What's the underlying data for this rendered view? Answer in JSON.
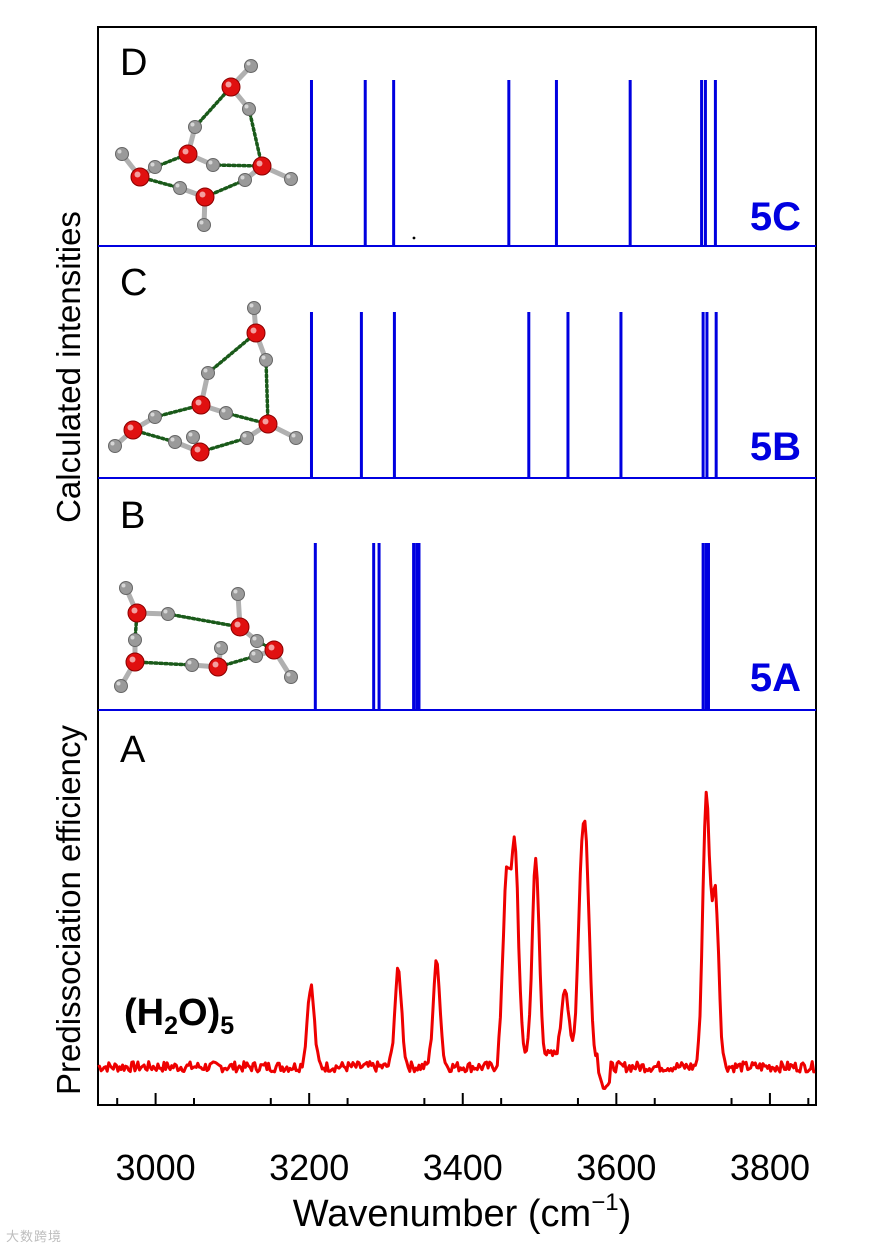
{
  "chart_data": [
    {
      "panel": "D",
      "type": "stick",
      "label": "5C",
      "color": "#0000e0",
      "x": [
        3203,
        3273,
        3310,
        3460,
        3522,
        3618,
        3711,
        3716,
        3729
      ],
      "heights": [
        1,
        1,
        1,
        1,
        1,
        1,
        1,
        1,
        1
      ]
    },
    {
      "panel": "C",
      "type": "stick",
      "label": "5B",
      "color": "#0000e0",
      "x": [
        3203,
        3268,
        3311,
        3486,
        3537,
        3606,
        3713,
        3718,
        3730
      ],
      "heights": [
        1,
        1,
        1,
        1,
        1,
        1,
        1,
        1,
        1
      ]
    },
    {
      "panel": "B",
      "type": "stick",
      "label": "5A",
      "color": "#0000e0",
      "x": [
        3208,
        3284,
        3291,
        3336,
        3340,
        3343,
        3713,
        3717,
        3720
      ],
      "heights": [
        1,
        1,
        1,
        1,
        1,
        1,
        1,
        1,
        1
      ]
    },
    {
      "panel": "A",
      "type": "line",
      "label": "(H2O)5",
      "color": "#ee0000",
      "peaks": [
        {
          "x": 3202,
          "y": 0.36
        },
        {
          "x": 3316,
          "y": 0.41
        },
        {
          "x": 3366,
          "y": 0.44
        },
        {
          "x": 3457,
          "y": 0.7
        },
        {
          "x": 3468,
          "y": 0.79
        },
        {
          "x": 3495,
          "y": 0.75
        },
        {
          "x": 3533,
          "y": 0.32
        },
        {
          "x": 3554,
          "y": 0.6
        },
        {
          "x": 3561,
          "y": 0.66
        },
        {
          "x": 3717,
          "y": 1.0
        },
        {
          "x": 3729,
          "y": 0.67
        }
      ],
      "baseline": 0.08,
      "noise": 0.018
    }
  ],
  "axes": {
    "xlabel_main": "Wavenumber (cm",
    "xlabel_sup": "−1",
    "xlabel_close": ")",
    "xlim": [
      2925,
      3860
    ],
    "xticks": [
      3000,
      3200,
      3400,
      3600,
      3800
    ],
    "xtick_labels": [
      "3000",
      "3200",
      "3400",
      "3600",
      "3800"
    ],
    "ylabel_upper": "Calculated intensities",
    "ylabel_lower": "Predissociation efficiency"
  },
  "panels": {
    "D": {
      "letter": "D",
      "structure_label": "5C"
    },
    "C": {
      "letter": "C",
      "structure_label": "5B"
    },
    "B": {
      "letter": "B",
      "structure_label": "5A"
    },
    "A": {
      "letter": "A",
      "formula": [
        "(H",
        "2",
        "O)",
        "5"
      ]
    }
  },
  "molecule_icons": [
    "water-pentamer-5C-structure",
    "water-pentamer-5B-structure",
    "water-pentamer-5A-structure"
  ],
  "watermark": "大数跨境",
  "colors": {
    "stick": "#0000e0",
    "spectrum": "#ee0000",
    "oxygen": "#e01010",
    "hydrogen": "#9a9a9a",
    "hbond": "#1a5a1a",
    "frame": "#000000"
  }
}
